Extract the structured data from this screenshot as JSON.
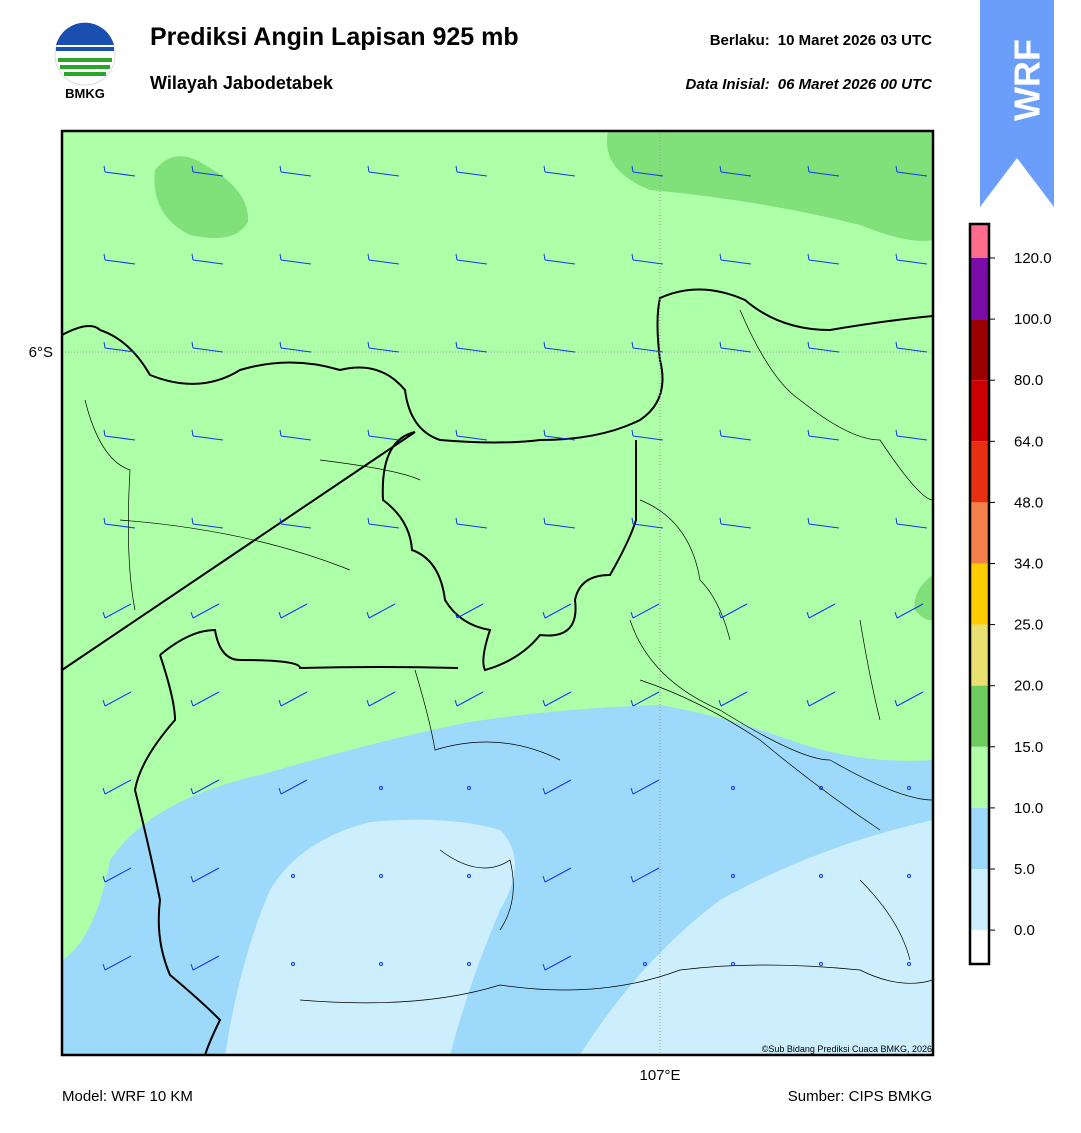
{
  "header": {
    "title": "Prediksi Angin Lapisan 925 mb",
    "subtitle": "Wilayah Jabodetabek",
    "valid_label": "Berlaku:",
    "valid_time": "10 Maret 2026 03 UTC",
    "initial_label": "Data Inisial:",
    "initial_time": "06 Maret 2026 00 UTC",
    "logo_text": "BMKG",
    "badge": "WRF"
  },
  "map": {
    "lat_label": "6°S",
    "lon_label": "107°E",
    "credit": "©Sub Bidang Prediksi Cuaca BMKG, 2026"
  },
  "colorbar": {
    "labels": [
      "120.0",
      "100.0",
      "80.0",
      "64.0",
      "48.0",
      "34.0",
      "25.0",
      "20.0",
      "15.0",
      "10.0",
      "5.0",
      "0.0"
    ]
  },
  "footer": {
    "model": "Model: WRF 10 KM",
    "source": "Sumber: CIPS BMKG"
  }
}
